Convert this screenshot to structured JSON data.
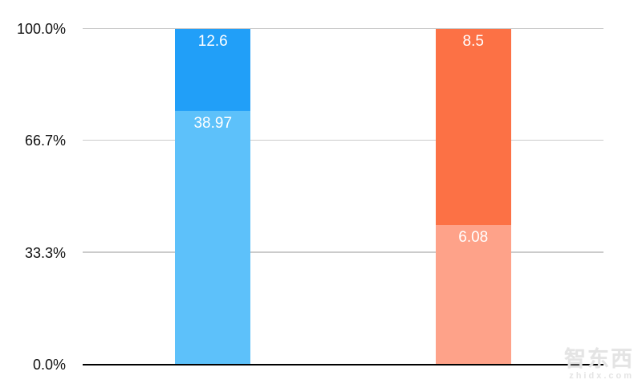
{
  "chart_data": {
    "type": "bar",
    "subtype": "100%-stacked-column",
    "title": "",
    "categories": [
      "",
      ""
    ],
    "bars": [
      {
        "category": "",
        "segments": [
          {
            "position": "top",
            "value": 12.6,
            "label": "12.6",
            "color": "#219FF8"
          },
          {
            "position": "bottom",
            "value": 38.97,
            "label": "38.97",
            "color": "#5DC1FA"
          }
        ]
      },
      {
        "category": "",
        "segments": [
          {
            "position": "top",
            "value": 8.5,
            "label": "8.5",
            "color": "#FC7145"
          },
          {
            "position": "bottom",
            "value": 6.08,
            "label": "6.08",
            "color": "#FEA289"
          }
        ]
      }
    ],
    "y_axis": {
      "ticks": [
        {
          "label": "100.0%",
          "value": 100
        },
        {
          "label": "66.7%",
          "value": 66.7
        },
        {
          "label": "33.3%",
          "value": 33.3
        },
        {
          "label": "0.0%",
          "value": 0
        }
      ],
      "range": [
        0,
        100
      ]
    },
    "grid": true,
    "legend": false,
    "colors": {
      "gridline": "#CBCBCB",
      "axis_line": "#000000",
      "tick_text": "#111111",
      "value_label_text": "#FFFFFF",
      "background": "#FFFFFF"
    }
  },
  "watermark": {
    "line1": "智东西",
    "line2": "zhidx.com",
    "color": "#E4E4E4"
  }
}
